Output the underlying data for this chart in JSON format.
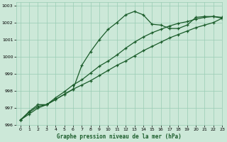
{
  "bg_color": "#cce8d8",
  "grid_color": "#99ccb4",
  "line_color": "#1a5c2a",
  "xlabel": "Graphe pression niveau de la mer (hPa)",
  "xlim": [
    -0.5,
    23
  ],
  "ylim": [
    996,
    1003.2
  ],
  "yticks": [
    996,
    997,
    998,
    999,
    1000,
    1001,
    1002,
    1003
  ],
  "xticks": [
    0,
    1,
    2,
    3,
    4,
    5,
    6,
    7,
    8,
    9,
    10,
    11,
    12,
    13,
    14,
    15,
    16,
    17,
    18,
    19,
    20,
    21,
    22,
    23
  ],
  "series1": {
    "x": [
      0,
      1,
      2,
      3,
      4,
      5,
      6,
      7,
      8,
      9,
      10,
      11,
      12,
      13,
      14,
      15,
      16,
      17,
      18,
      19,
      20,
      21,
      22,
      23
    ],
    "y": [
      996.3,
      996.8,
      997.2,
      997.2,
      997.5,
      997.8,
      998.1,
      999.5,
      1000.3,
      1001.0,
      1001.6,
      1002.0,
      1002.45,
      1002.65,
      1002.45,
      1001.9,
      1001.85,
      1001.65,
      1001.65,
      1001.85,
      1002.3,
      1002.35,
      1002.35,
      1002.3
    ]
  },
  "series2": {
    "x": [
      0,
      1,
      2,
      3,
      4,
      5,
      6,
      7,
      8,
      9,
      10,
      11,
      12,
      13,
      14,
      15,
      16,
      17,
      18,
      19,
      20,
      21,
      22,
      23
    ],
    "y": [
      996.3,
      996.65,
      997.0,
      997.2,
      997.5,
      997.8,
      998.1,
      998.35,
      998.6,
      998.9,
      999.2,
      999.5,
      999.75,
      1000.05,
      1000.35,
      1000.6,
      1000.85,
      1001.1,
      1001.3,
      1001.5,
      1001.7,
      1001.85,
      1002.0,
      1002.25
    ]
  },
  "series3": {
    "x": [
      0,
      1,
      2,
      3,
      4,
      5,
      6,
      7,
      8,
      9,
      10,
      11,
      12,
      13,
      14,
      15,
      16,
      17,
      18,
      19,
      20,
      21,
      22,
      23
    ],
    "y": [
      996.3,
      996.75,
      997.1,
      997.2,
      997.6,
      997.95,
      998.35,
      998.65,
      999.05,
      999.45,
      999.75,
      1000.1,
      1000.5,
      1000.85,
      1001.15,
      1001.4,
      1001.6,
      1001.8,
      1001.95,
      1002.05,
      1002.2,
      1002.3,
      1002.35,
      1002.25
    ]
  }
}
